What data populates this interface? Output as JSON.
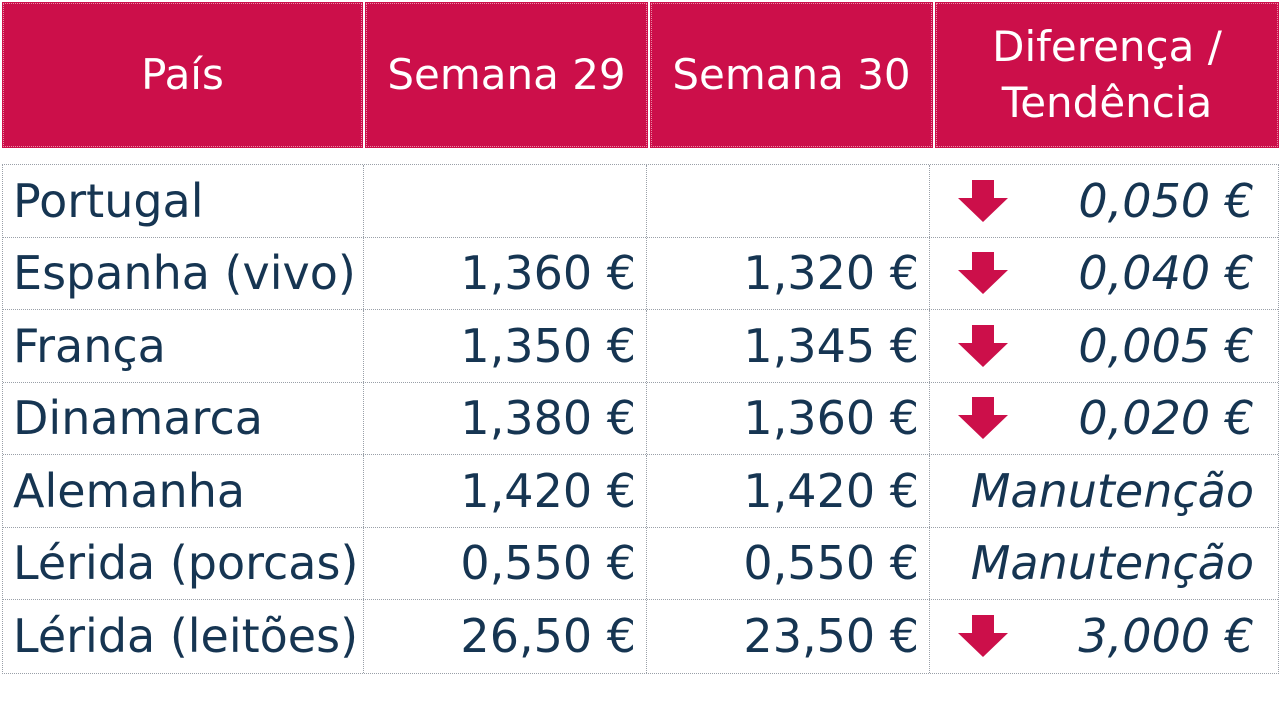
{
  "header": {
    "col_country": "País",
    "col_week29": "Semana 29",
    "col_week30": "Semana 30",
    "col_diff_line1": "Diferença /",
    "col_diff_line2": "Tendência"
  },
  "accent_color": "#cc0f4a",
  "text_color": "#163552",
  "rows": [
    {
      "country": "Portugal",
      "week29": "",
      "week30": "",
      "trend": "down-arrow-icon",
      "diff": "0,050 €"
    },
    {
      "country": "Espanha (vivo)",
      "week29": "1,360 €",
      "week30": "1,320 €",
      "trend": "down-arrow-icon",
      "diff": "0,040 €"
    },
    {
      "country": "França",
      "week29": "1,350 €",
      "week30": "1,345 €",
      "trend": "down-arrow-icon",
      "diff": "0,005 €"
    },
    {
      "country": "Dinamarca",
      "week29": "1,380 €",
      "week30": "1,360 €",
      "trend": "down-arrow-icon",
      "diff": "0,020 €"
    },
    {
      "country": "Alemanha",
      "week29": "1,420 €",
      "week30": "1,420 €",
      "trend": "",
      "diff": "Manutenção"
    },
    {
      "country": "Lérida (porcas)",
      "week29": "0,550 €",
      "week30": "0,550 €",
      "trend": "",
      "diff": "Manutenção"
    },
    {
      "country": "Lérida (leitões)",
      "week29": "26,50 €",
      "week30": "23,50 €",
      "trend": "down-arrow-icon",
      "diff": "3,000 €"
    }
  ]
}
